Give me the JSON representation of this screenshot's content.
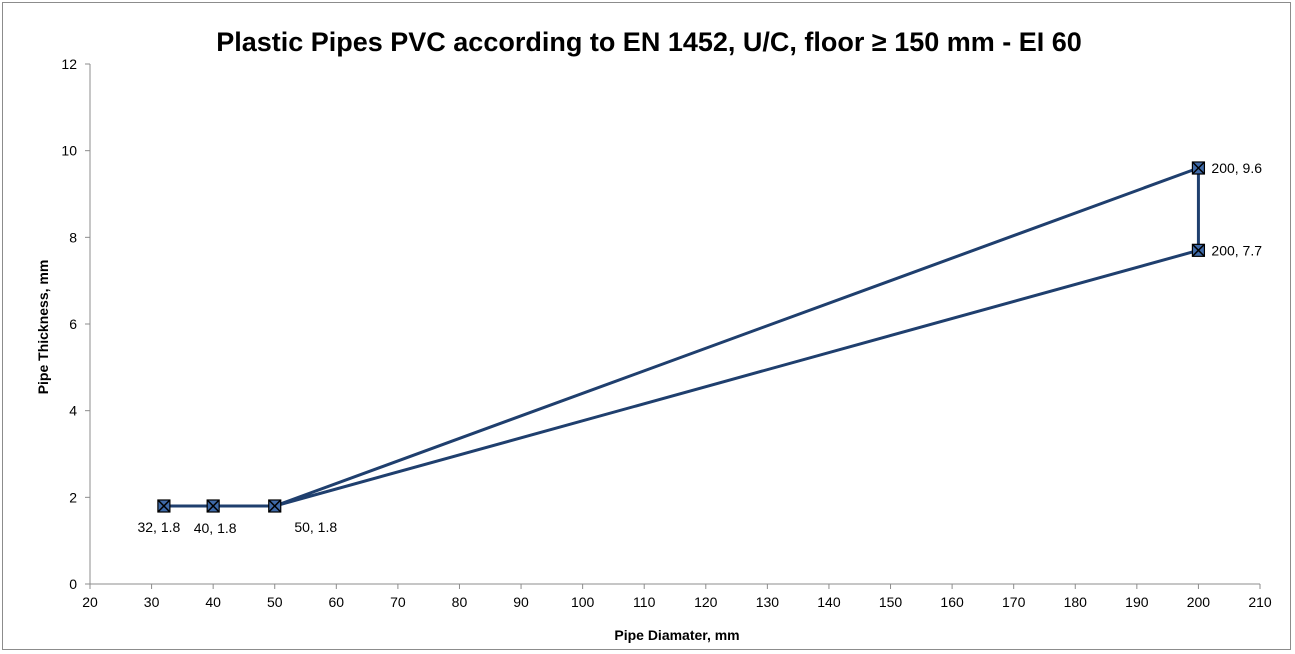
{
  "chart_data": {
    "type": "line",
    "title": "Plastic Pipes PVC according to EN 1452, U/C, floor ≥ 150 mm - EI 60",
    "xlabel": "Pipe Diamater, mm",
    "ylabel": "Pipe Thickness, mm",
    "xlim": [
      20,
      210
    ],
    "ylim": [
      0,
      12
    ],
    "x_ticks": [
      20,
      30,
      40,
      50,
      60,
      70,
      80,
      90,
      100,
      110,
      120,
      130,
      140,
      150,
      160,
      170,
      180,
      190,
      200,
      210
    ],
    "y_ticks": [
      0,
      2,
      4,
      6,
      8,
      10,
      12
    ],
    "grid": false,
    "legend": "none",
    "line_color": "#1f3f6e",
    "marker": "x-square",
    "series": [
      {
        "points": [
          {
            "x": 32,
            "y": 1.8,
            "label": "32, 1.8",
            "label_pos": "below-left"
          },
          {
            "x": 40,
            "y": 1.8,
            "label": "40, 1.8",
            "label_pos": "below"
          },
          {
            "x": 50,
            "y": 1.8,
            "label": "50, 1.8",
            "label_pos": "below-right"
          },
          {
            "x": 200,
            "y": 9.6,
            "label": "200, 9.6",
            "label_pos": "right"
          },
          {
            "x": 200,
            "y": 7.7,
            "label": "200, 7.7",
            "label_pos": "right"
          },
          {
            "x": 50,
            "y": 1.8,
            "label": "",
            "label_pos": "none"
          }
        ]
      }
    ]
  }
}
